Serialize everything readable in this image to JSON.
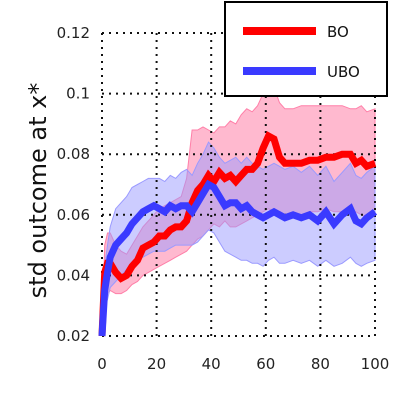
{
  "chart_data": {
    "type": "line",
    "title": "",
    "xlabel": "",
    "ylabel": "std outcome at x*",
    "xlim": [
      0,
      100
    ],
    "ylim": [
      0.02,
      0.12
    ],
    "xticks": [
      0,
      20,
      40,
      60,
      80,
      100
    ],
    "yticks": [
      0.02,
      0.04,
      0.06,
      0.08,
      0.1,
      0.12
    ],
    "xtick_labels": [
      "0",
      "20",
      "40",
      "60",
      "80",
      "100"
    ],
    "ytick_labels": [
      "0.02",
      "0.04",
      "0.06",
      "0.08",
      "0.1",
      "0.12"
    ],
    "grid": true,
    "legend_position": "top-right",
    "series": [
      {
        "name": "BO",
        "color": "#ff0000",
        "band_color": "#ff7fa8",
        "x": [
          0,
          1,
          2,
          3,
          5,
          7,
          9,
          11,
          13,
          15,
          17,
          19,
          21,
          23,
          25,
          27,
          29,
          31,
          33,
          35,
          37,
          39,
          41,
          43,
          45,
          47,
          49,
          51,
          53,
          55,
          57,
          59,
          61,
          63,
          65,
          67,
          70,
          73,
          76,
          79,
          82,
          85,
          88,
          91,
          93,
          95,
          97,
          100
        ],
        "y": [
          0.02,
          0.041,
          0.044,
          0.044,
          0.041,
          0.039,
          0.04,
          0.043,
          0.045,
          0.049,
          0.05,
          0.051,
          0.053,
          0.053,
          0.055,
          0.056,
          0.056,
          0.058,
          0.064,
          0.068,
          0.07,
          0.073,
          0.071,
          0.074,
          0.072,
          0.073,
          0.071,
          0.073,
          0.075,
          0.075,
          0.077,
          0.082,
          0.086,
          0.085,
          0.079,
          0.077,
          0.077,
          0.077,
          0.078,
          0.078,
          0.079,
          0.079,
          0.08,
          0.08,
          0.077,
          0.078,
          0.076,
          0.077
        ],
        "lower": [
          0.02,
          0.03,
          0.034,
          0.035,
          0.034,
          0.034,
          0.035,
          0.037,
          0.038,
          0.04,
          0.041,
          0.042,
          0.043,
          0.044,
          0.045,
          0.046,
          0.047,
          0.048,
          0.05,
          0.052,
          0.053,
          0.055,
          0.057,
          0.056,
          0.058,
          0.056,
          0.056,
          0.057,
          0.058,
          0.059,
          0.06,
          0.061,
          0.062,
          0.061,
          0.061,
          0.06,
          0.06,
          0.06,
          0.061,
          0.061,
          0.062,
          0.061,
          0.061,
          0.062,
          0.061,
          0.06,
          0.059,
          0.06
        ],
        "upper": [
          0.02,
          0.05,
          0.054,
          0.054,
          0.05,
          0.048,
          0.047,
          0.05,
          0.053,
          0.056,
          0.058,
          0.06,
          0.062,
          0.063,
          0.064,
          0.065,
          0.066,
          0.072,
          0.088,
          0.088,
          0.089,
          0.088,
          0.087,
          0.089,
          0.089,
          0.091,
          0.09,
          0.093,
          0.095,
          0.094,
          0.096,
          0.1,
          0.104,
          0.102,
          0.097,
          0.095,
          0.095,
          0.096,
          0.096,
          0.096,
          0.096,
          0.096,
          0.096,
          0.095,
          0.095,
          0.096,
          0.094,
          0.095
        ]
      },
      {
        "name": "UBO",
        "color": "#3a3aff",
        "band_color": "#9a9aff",
        "x": [
          0,
          1,
          2,
          3,
          5,
          7,
          9,
          11,
          13,
          15,
          17,
          19,
          21,
          23,
          25,
          27,
          29,
          31,
          33,
          35,
          37,
          39,
          41,
          43,
          45,
          47,
          49,
          51,
          53,
          55,
          57,
          59,
          61,
          63,
          65,
          67,
          70,
          73,
          76,
          79,
          82,
          85,
          88,
          91,
          93,
          95,
          97,
          100
        ],
        "y": [
          0.02,
          0.035,
          0.041,
          0.046,
          0.05,
          0.052,
          0.054,
          0.057,
          0.059,
          0.061,
          0.062,
          0.063,
          0.062,
          0.061,
          0.063,
          0.062,
          0.063,
          0.063,
          0.061,
          0.064,
          0.067,
          0.07,
          0.069,
          0.066,
          0.063,
          0.064,
          0.064,
          0.062,
          0.063,
          0.061,
          0.06,
          0.059,
          0.06,
          0.061,
          0.06,
          0.059,
          0.06,
          0.059,
          0.06,
          0.058,
          0.061,
          0.057,
          0.06,
          0.062,
          0.058,
          0.057,
          0.059,
          0.061
        ],
        "lower": [
          0.02,
          0.03,
          0.032,
          0.036,
          0.038,
          0.04,
          0.042,
          0.044,
          0.045,
          0.046,
          0.047,
          0.048,
          0.048,
          0.048,
          0.049,
          0.05,
          0.05,
          0.05,
          0.05,
          0.051,
          0.053,
          0.055,
          0.054,
          0.051,
          0.048,
          0.047,
          0.046,
          0.045,
          0.045,
          0.044,
          0.044,
          0.043,
          0.045,
          0.046,
          0.044,
          0.044,
          0.045,
          0.044,
          0.045,
          0.043,
          0.045,
          0.043,
          0.044,
          0.046,
          0.044,
          0.043,
          0.044,
          0.045
        ],
        "upper": [
          0.02,
          0.043,
          0.05,
          0.056,
          0.062,
          0.064,
          0.066,
          0.069,
          0.07,
          0.071,
          0.072,
          0.072,
          0.072,
          0.071,
          0.073,
          0.072,
          0.074,
          0.075,
          0.073,
          0.077,
          0.08,
          0.084,
          0.082,
          0.079,
          0.077,
          0.078,
          0.079,
          0.077,
          0.079,
          0.077,
          0.076,
          0.075,
          0.076,
          0.077,
          0.076,
          0.075,
          0.076,
          0.074,
          0.076,
          0.073,
          0.076,
          0.071,
          0.074,
          0.077,
          0.073,
          0.072,
          0.074,
          0.076
        ]
      }
    ]
  }
}
